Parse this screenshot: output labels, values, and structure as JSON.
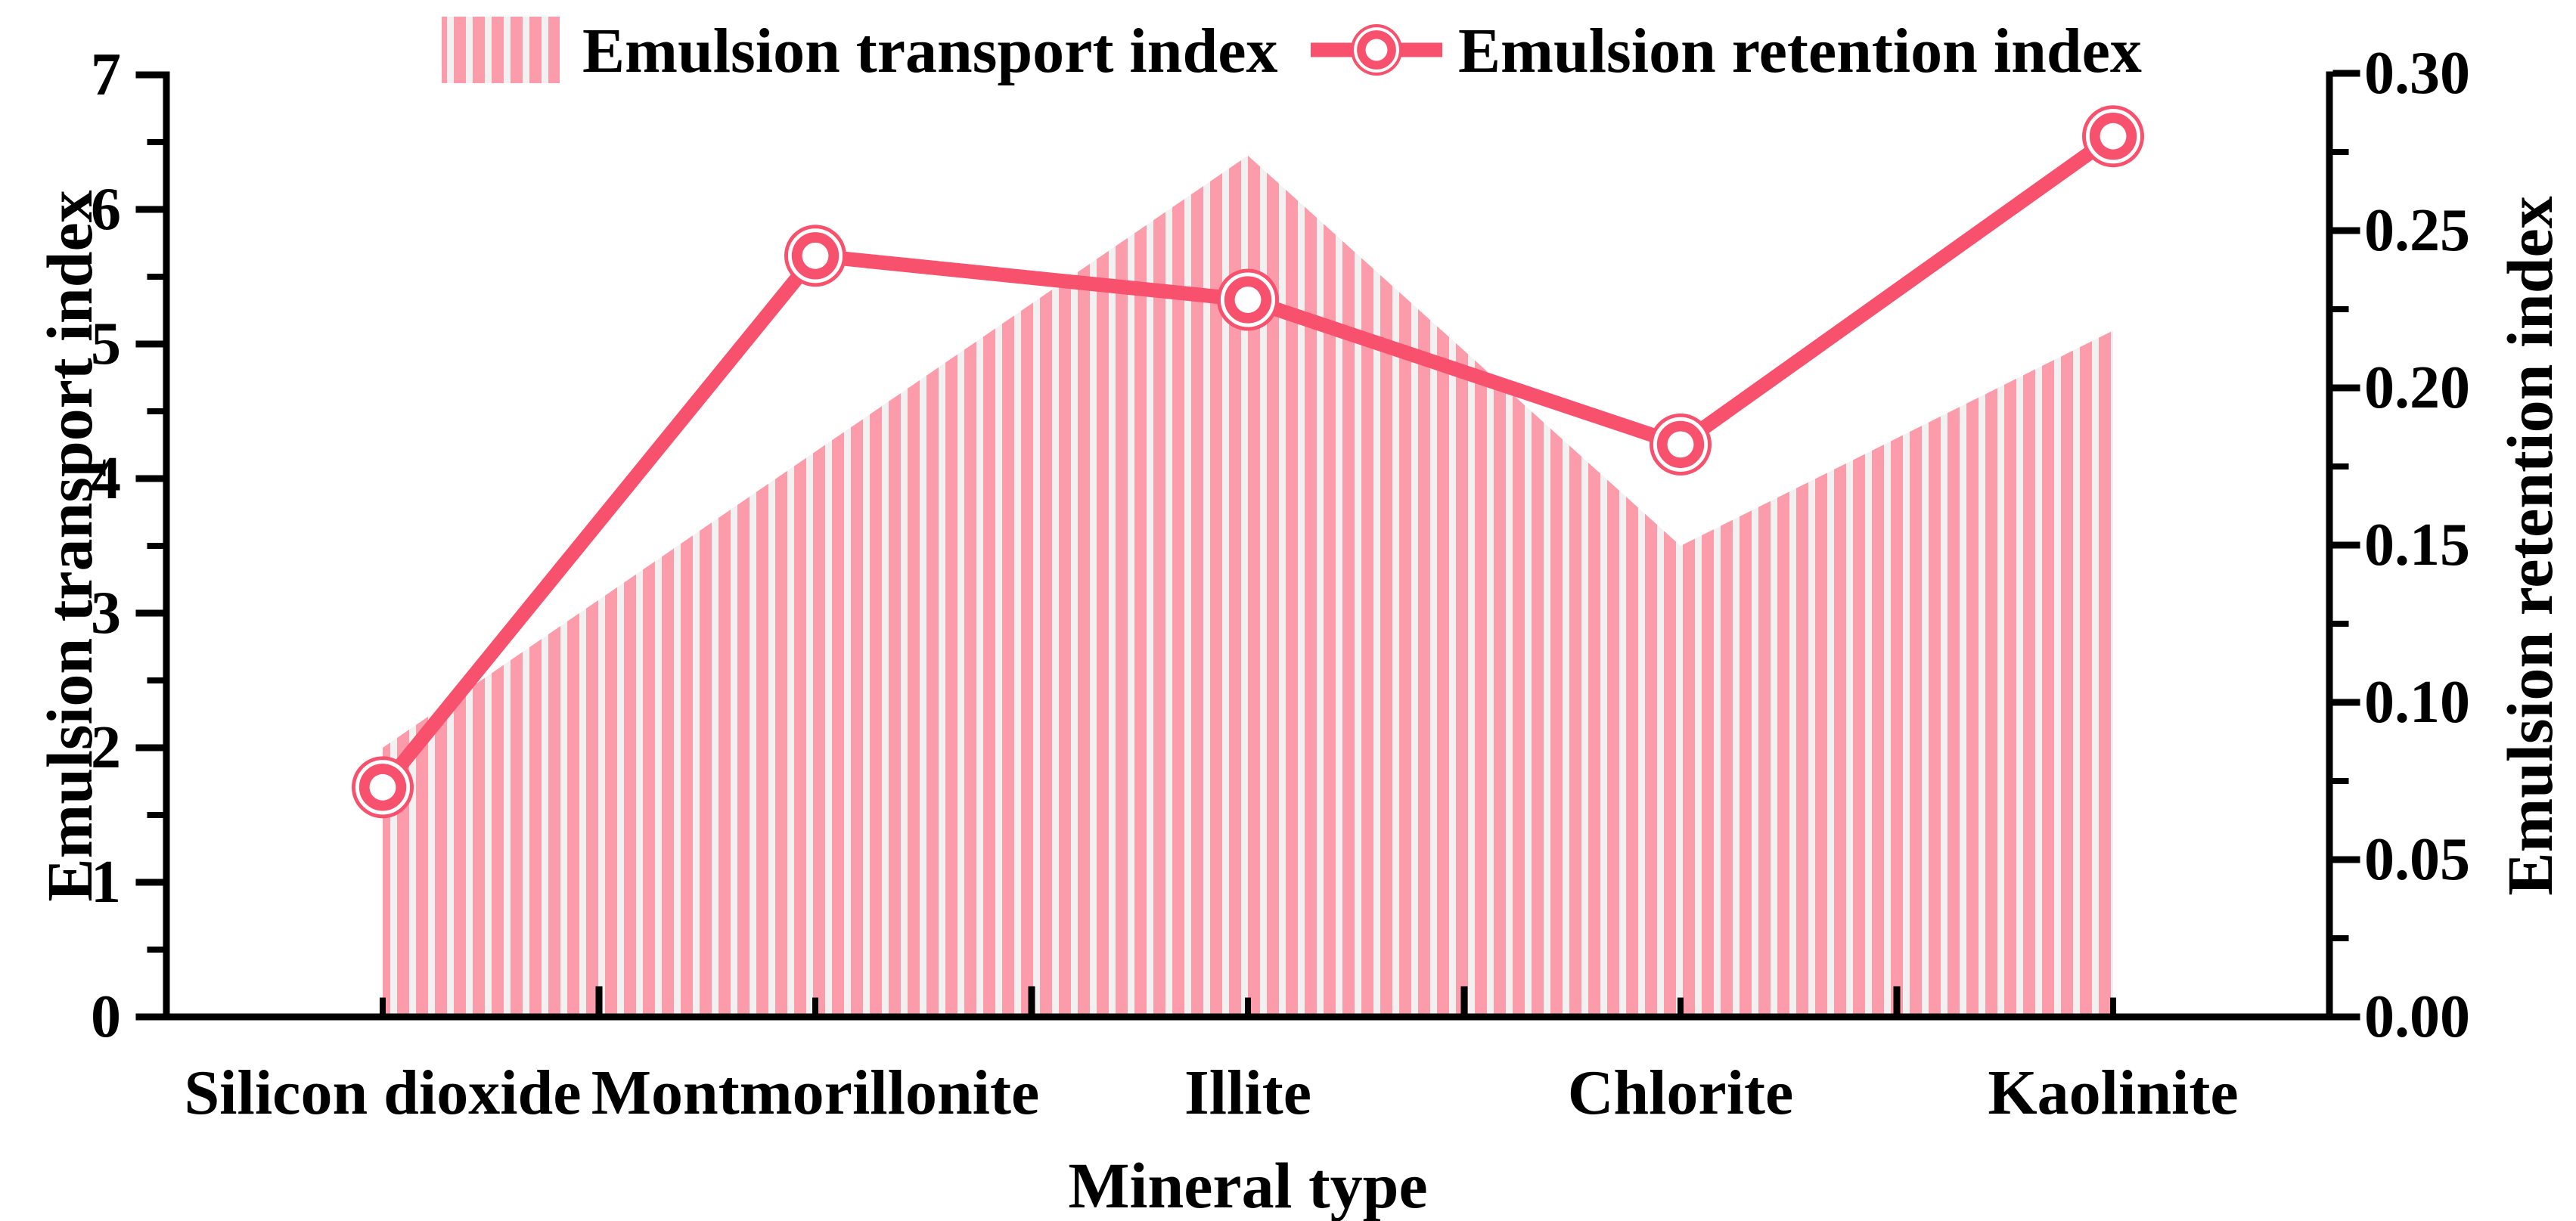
{
  "figure": {
    "legend": [
      {
        "label": "Emulsion transport index",
        "swatch": "striped-block"
      },
      {
        "label": "Emulsion retention index",
        "swatch": "line-with-circle-marker"
      }
    ]
  },
  "chart_data": {
    "type": "combo",
    "categories": [
      "Silicon dioxide",
      "Montmorillonite",
      "Illite",
      "Chlorite",
      "Kaolinite"
    ],
    "series": [
      {
        "name": "Emulsion transport index",
        "type": "area-striped",
        "axis": "left",
        "values": [
          2.0,
          4.2,
          6.4,
          3.5,
          5.1
        ]
      },
      {
        "name": "Emulsion retention index",
        "type": "line",
        "axis": "right",
        "values": [
          0.073,
          0.242,
          0.228,
          0.182,
          0.28
        ]
      }
    ],
    "xlabel": "Mineral type",
    "ylabel_left": "Emulsion transport index",
    "ylabel_right": "Emulsion retention index",
    "ylim_left": [
      0,
      7
    ],
    "ylim_right": [
      0,
      0.3
    ],
    "yticks_left": [
      "0",
      "1",
      "2",
      "3",
      "4",
      "5",
      "6",
      "7"
    ],
    "yticks_right": [
      "0.00",
      "0.05",
      "0.10",
      "0.15",
      "0.20",
      "0.25",
      "0.30"
    ],
    "legend_position": "top",
    "grid": false,
    "colors": {
      "line": "#F8516D",
      "stripe": "#FC9CAB",
      "stripe_gap": "#F2F1F2",
      "axis": "#000000",
      "text": "#000000"
    }
  }
}
